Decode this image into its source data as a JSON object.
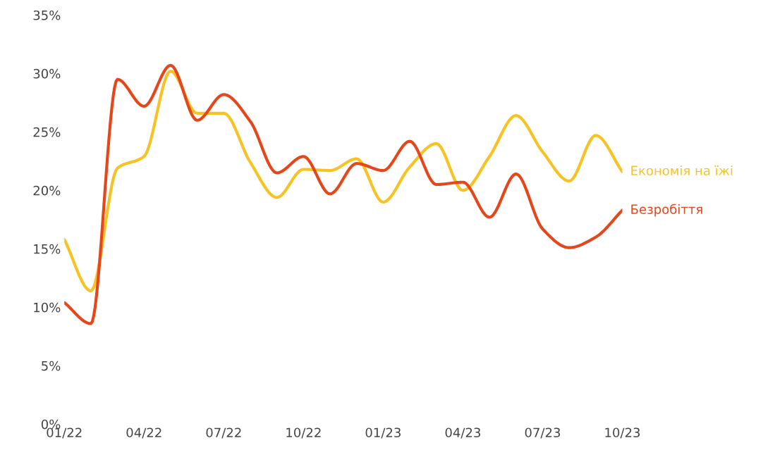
{
  "chart_data": {
    "type": "line",
    "x": [
      "2022-01",
      "2022-02",
      "2022-03",
      "2022-04",
      "2022-05",
      "2022-06",
      "2022-07",
      "2022-08",
      "2022-09",
      "2022-10",
      "2022-11",
      "2022-12",
      "2023-01",
      "2023-02",
      "2023-03",
      "2023-04",
      "2023-05",
      "2023-06",
      "2023-07",
      "2023-08",
      "2023-09",
      "2023-10"
    ],
    "series": [
      {
        "name": "Економія на їжі",
        "color": "#f6c224",
        "values": [
          15.8,
          11.4,
          21.9,
          22.9,
          30.2,
          26.6,
          26.6,
          22.4,
          19.4,
          21.8,
          21.7,
          22.7,
          19.0,
          22.0,
          24.0,
          20.0,
          22.9,
          26.4,
          23.3,
          20.8,
          24.7,
          21.6
        ]
      },
      {
        "name": "Безробіття",
        "color": "#e5471a",
        "values": [
          10.4,
          8.6,
          29.5,
          27.2,
          30.7,
          26.0,
          28.2,
          25.9,
          21.5,
          22.9,
          19.7,
          22.3,
          21.7,
          24.2,
          20.5,
          20.7,
          17.7,
          21.4,
          16.7,
          15.1,
          16.0,
          18.3
        ]
      }
    ],
    "xlim": [
      "2022-01",
      "2023-10"
    ],
    "xticks": [
      {
        "value": "2022-01",
        "label": "01/22"
      },
      {
        "value": "2022-04",
        "label": "04/22"
      },
      {
        "value": "2022-07",
        "label": "07/22"
      },
      {
        "value": "2022-10",
        "label": "10/22"
      },
      {
        "value": "2023-01",
        "label": "01/23"
      },
      {
        "value": "2023-04",
        "label": "04/23"
      },
      {
        "value": "2023-07",
        "label": "07/23"
      },
      {
        "value": "2023-10",
        "label": "10/23"
      }
    ],
    "ylim": [
      0,
      35
    ],
    "yticks": [
      {
        "value": 0,
        "label": "0%"
      },
      {
        "value": 5,
        "label": "5%"
      },
      {
        "value": 10,
        "label": "10%"
      },
      {
        "value": 15,
        "label": "15%"
      },
      {
        "value": 20,
        "label": "20%"
      },
      {
        "value": 25,
        "label": "25%"
      },
      {
        "value": 30,
        "label": "30%"
      },
      {
        "value": 35,
        "label": "35%"
      }
    ],
    "grid": false,
    "legend": false,
    "marker": "none",
    "line_style": "solid"
  }
}
